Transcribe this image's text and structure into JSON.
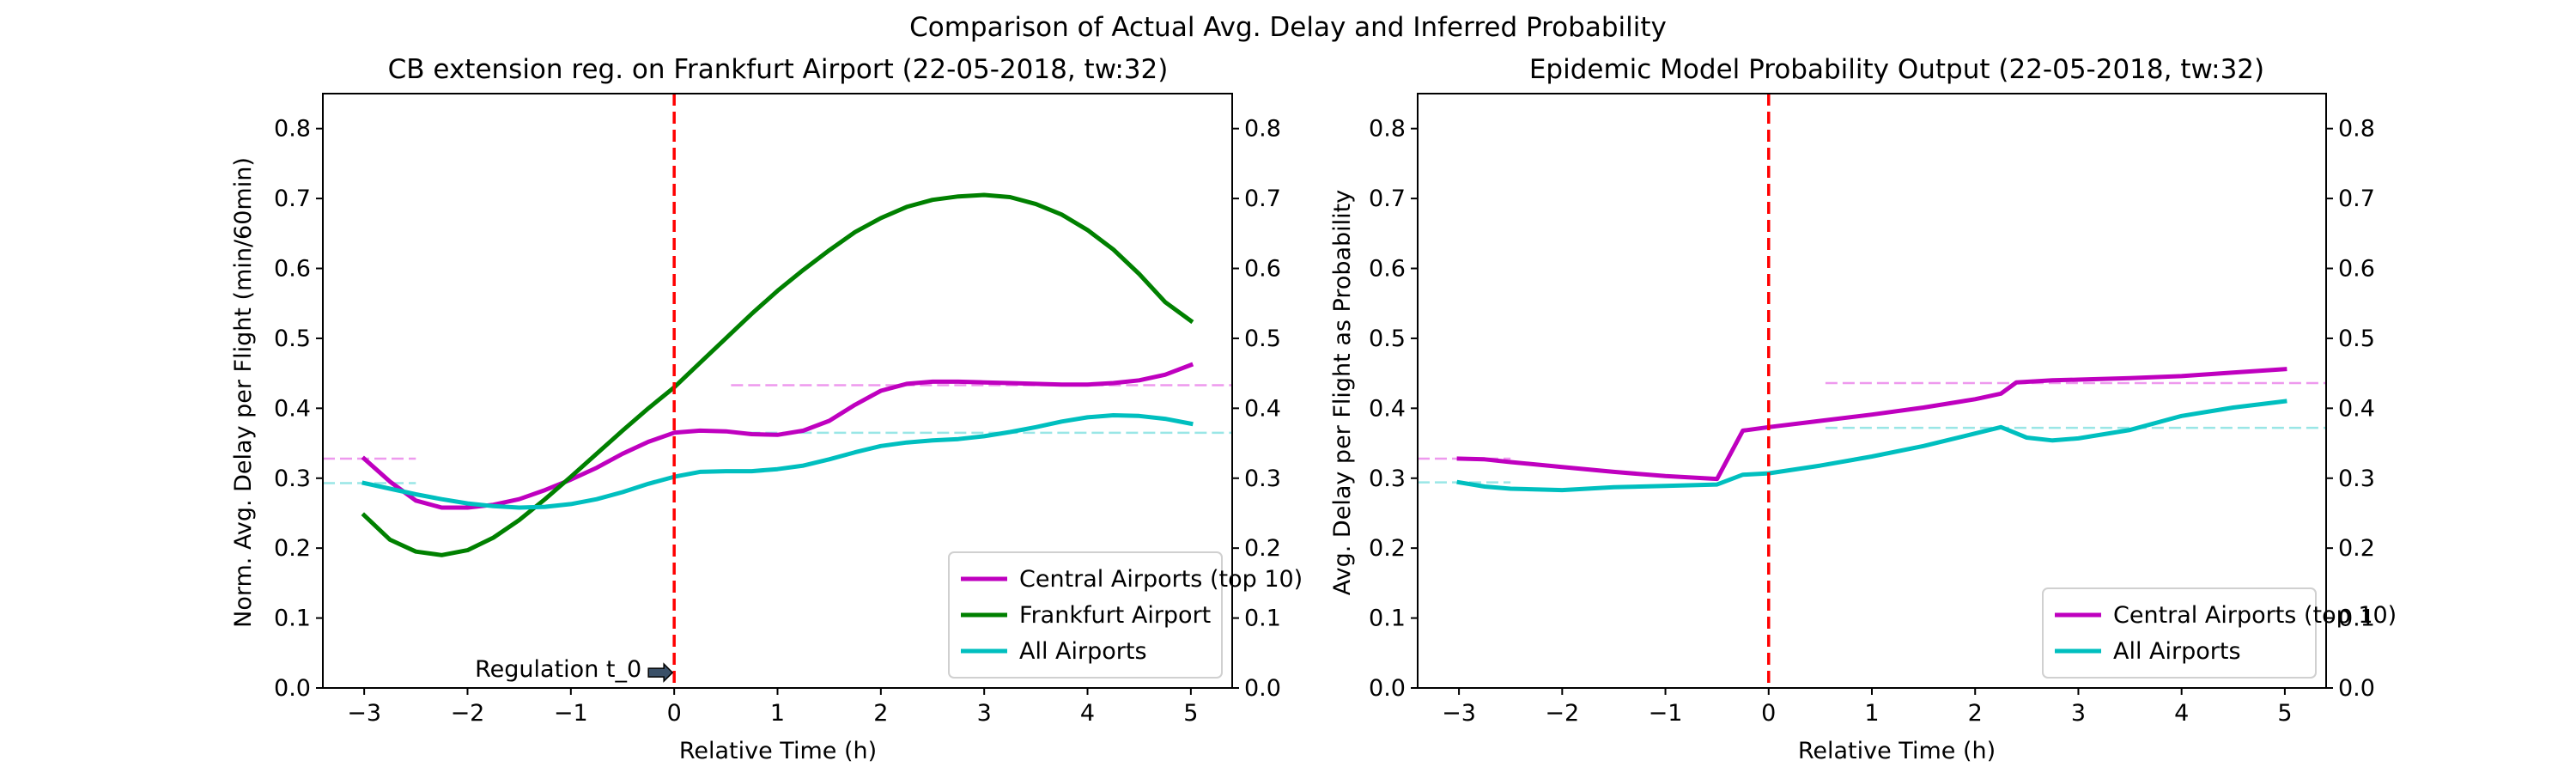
{
  "figure": {
    "suptitle": "Comparison of Actual Avg. Delay and Inferred Probability"
  },
  "chart_data": [
    {
      "type": "line",
      "title": "CB extension reg. on Frankfurt Airport (22-05-2018, tw:32)",
      "xlabel": "Relative Time (h)",
      "ylabel": "Norm. Avg. Delay per Flight (min/60min)",
      "xlim": [
        -3.4,
        5.4
      ],
      "ylim": [
        0,
        0.85
      ],
      "xticks": [
        -3,
        -2,
        -1,
        0,
        1,
        2,
        3,
        4,
        5
      ],
      "yticks": [
        0.0,
        0.1,
        0.2,
        0.3,
        0.4,
        0.5,
        0.6,
        0.7,
        0.8
      ],
      "twin_y_axis": true,
      "grid": false,
      "legend_position": "lower-right",
      "vline": {
        "x": 0,
        "color": "#ff0000",
        "style": "dashed"
      },
      "annotation": {
        "text": "Regulation t_0",
        "arrow_to": [
          0,
          0.022
        ]
      },
      "series": [
        {
          "name": "Central Airports (top 10)",
          "color": "#bf00bf",
          "x": [
            -3,
            -2.75,
            -2.5,
            -2.25,
            -2.0,
            -1.75,
            -1.5,
            -1.25,
            -1.0,
            -0.75,
            -0.5,
            -0.25,
            0.0,
            0.25,
            0.5,
            0.75,
            1.0,
            1.25,
            1.5,
            1.75,
            2.0,
            2.25,
            2.5,
            2.75,
            3.0,
            3.25,
            3.5,
            3.75,
            4.0,
            4.25,
            4.5,
            4.75,
            5.0
          ],
          "y": [
            0.328,
            0.295,
            0.268,
            0.258,
            0.258,
            0.262,
            0.27,
            0.283,
            0.298,
            0.315,
            0.335,
            0.352,
            0.365,
            0.368,
            0.367,
            0.363,
            0.362,
            0.368,
            0.382,
            0.405,
            0.425,
            0.435,
            0.438,
            0.438,
            0.437,
            0.436,
            0.435,
            0.434,
            0.434,
            0.436,
            0.44,
            0.448,
            0.462
          ]
        },
        {
          "name": "Frankfurt Airport",
          "color": "#008000",
          "x": [
            -3,
            -2.75,
            -2.5,
            -2.25,
            -2.0,
            -1.75,
            -1.5,
            -1.25,
            -1.0,
            -0.75,
            -0.5,
            -0.25,
            0.0,
            0.25,
            0.5,
            0.75,
            1.0,
            1.25,
            1.5,
            1.75,
            2.0,
            2.25,
            2.5,
            2.75,
            3.0,
            3.25,
            3.5,
            3.75,
            4.0,
            4.25,
            4.5,
            4.75,
            5.0
          ],
          "y": [
            0.247,
            0.212,
            0.195,
            0.19,
            0.197,
            0.215,
            0.24,
            0.27,
            0.302,
            0.335,
            0.368,
            0.4,
            0.43,
            0.465,
            0.5,
            0.535,
            0.568,
            0.598,
            0.626,
            0.652,
            0.672,
            0.688,
            0.698,
            0.703,
            0.705,
            0.702,
            0.692,
            0.677,
            0.655,
            0.627,
            0.592,
            0.552,
            0.525
          ]
        },
        {
          "name": "All Airports",
          "color": "#00bfbf",
          "x": [
            -3,
            -2.75,
            -2.5,
            -2.25,
            -2.0,
            -1.75,
            -1.5,
            -1.25,
            -1.0,
            -0.75,
            -0.5,
            -0.25,
            0.0,
            0.25,
            0.5,
            0.75,
            1.0,
            1.25,
            1.5,
            1.75,
            2.0,
            2.25,
            2.5,
            2.75,
            3.0,
            3.25,
            3.5,
            3.75,
            4.0,
            4.25,
            4.5,
            4.75,
            5.0
          ],
          "y": [
            0.293,
            0.285,
            0.277,
            0.27,
            0.264,
            0.26,
            0.258,
            0.259,
            0.263,
            0.27,
            0.28,
            0.292,
            0.302,
            0.309,
            0.31,
            0.31,
            0.313,
            0.318,
            0.327,
            0.337,
            0.346,
            0.351,
            0.354,
            0.356,
            0.36,
            0.366,
            0.373,
            0.381,
            0.387,
            0.39,
            0.389,
            0.385,
            0.378
          ]
        }
      ],
      "reference_lines": [
        {
          "color": "#ee99ee",
          "x": [
            -3.4,
            -2.5
          ],
          "y": 0.328
        },
        {
          "color": "#ee99ee",
          "x": [
            0.55,
            5.4
          ],
          "y": 0.433
        },
        {
          "color": "#99e6e6",
          "x": [
            -3.4,
            -2.5
          ],
          "y": 0.293
        },
        {
          "color": "#99e6e6",
          "x": [
            0.55,
            5.4
          ],
          "y": 0.365
        }
      ]
    },
    {
      "type": "line",
      "title": "Epidemic Model Probability Output (22-05-2018, tw:32)",
      "xlabel": "Relative Time (h)",
      "ylabel": "Avg. Delay per Flight as Probability",
      "xlim": [
        -3.4,
        5.4
      ],
      "ylim": [
        0,
        0.85
      ],
      "xticks": [
        -3,
        -2,
        -1,
        0,
        1,
        2,
        3,
        4,
        5
      ],
      "yticks": [
        0.0,
        0.1,
        0.2,
        0.3,
        0.4,
        0.5,
        0.6,
        0.7,
        0.8
      ],
      "twin_y_axis": true,
      "grid": false,
      "legend_position": "lower-right",
      "vline": {
        "x": 0,
        "color": "#ff0000",
        "style": "dashed"
      },
      "series": [
        {
          "name": "Central Airports (top 10)",
          "color": "#bf00bf",
          "x": [
            -3,
            -2.75,
            -2.5,
            -2.0,
            -1.5,
            -1.0,
            -0.5,
            -0.25,
            0.0,
            0.5,
            1.0,
            1.5,
            2.0,
            2.25,
            2.4,
            2.75,
            3.0,
            3.5,
            4.0,
            4.5,
            5.0
          ],
          "y": [
            0.328,
            0.327,
            0.323,
            0.316,
            0.309,
            0.303,
            0.299,
            0.368,
            0.373,
            0.382,
            0.391,
            0.401,
            0.413,
            0.421,
            0.437,
            0.44,
            0.441,
            0.443,
            0.446,
            0.451,
            0.456
          ]
        },
        {
          "name": "All Airports",
          "color": "#00bfbf",
          "x": [
            -3,
            -2.75,
            -2.5,
            -2.0,
            -1.5,
            -1.0,
            -0.5,
            -0.25,
            0.0,
            0.5,
            1.0,
            1.5,
            2.0,
            2.25,
            2.5,
            2.75,
            3.0,
            3.5,
            4.0,
            4.5,
            5.0
          ],
          "y": [
            0.294,
            0.288,
            0.285,
            0.283,
            0.287,
            0.289,
            0.291,
            0.305,
            0.307,
            0.318,
            0.331,
            0.346,
            0.364,
            0.373,
            0.358,
            0.354,
            0.357,
            0.369,
            0.389,
            0.401,
            0.41
          ]
        }
      ],
      "reference_lines": [
        {
          "color": "#ee99ee",
          "x": [
            -3.4,
            -2.5
          ],
          "y": 0.328
        },
        {
          "color": "#ee99ee",
          "x": [
            0.55,
            5.4
          ],
          "y": 0.436
        },
        {
          "color": "#99e6e6",
          "x": [
            -3.4,
            -2.5
          ],
          "y": 0.294
        },
        {
          "color": "#99e6e6",
          "x": [
            0.55,
            5.4
          ],
          "y": 0.372
        }
      ]
    }
  ]
}
